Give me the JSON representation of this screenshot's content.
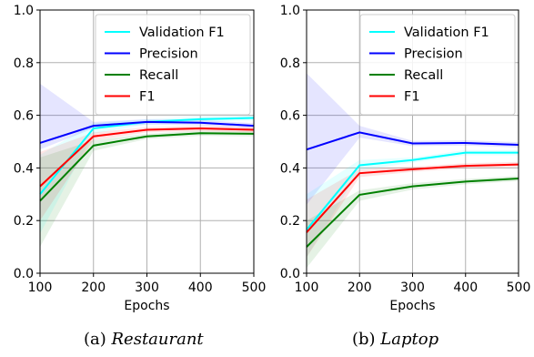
{
  "series_colors": {
    "validation_f1": "#00ffff",
    "precision": "#0000ff",
    "recall": "#008000",
    "f1": "#ff0000"
  },
  "captions": [
    {
      "prefix": "(a) ",
      "name": "Restaurant"
    },
    {
      "prefix": "(b) ",
      "name": "Laptop"
    }
  ],
  "chart_data": [
    {
      "type": "line",
      "xlabel": "Epochs",
      "ylabel": "",
      "x": [
        100,
        200,
        300,
        400,
        500
      ],
      "xlim": [
        100,
        500
      ],
      "ylim": [
        0.0,
        1.0
      ],
      "x_ticks": [
        "100",
        "200",
        "300",
        "400",
        "500"
      ],
      "y_ticks": [
        "0.0",
        "0.2",
        "0.4",
        "0.6",
        "0.8",
        "1.0"
      ],
      "grid": true,
      "legend_position": "top-right",
      "series": [
        {
          "name": "Validation F1",
          "key": "validation_f1",
          "values": [
            0.3,
            0.55,
            0.575,
            0.585,
            0.59
          ],
          "band_low": [
            0.15,
            0.53,
            0.565,
            0.575,
            0.58
          ],
          "band_high": [
            0.45,
            0.57,
            0.585,
            0.595,
            0.6
          ]
        },
        {
          "name": "Precision",
          "key": "precision",
          "values": [
            0.495,
            0.56,
            0.575,
            0.572,
            0.56
          ],
          "band_low": [
            0.47,
            0.55,
            0.565,
            0.562,
            0.55
          ],
          "band_high": [
            0.72,
            0.575,
            0.585,
            0.582,
            0.57
          ]
        },
        {
          "name": "Recall",
          "key": "recall",
          "values": [
            0.275,
            0.485,
            0.52,
            0.532,
            0.53
          ],
          "band_low": [
            0.1,
            0.465,
            0.51,
            0.522,
            0.52
          ],
          "band_high": [
            0.44,
            0.505,
            0.53,
            0.542,
            0.54
          ]
        },
        {
          "name": "F1",
          "key": "f1",
          "values": [
            0.33,
            0.52,
            0.545,
            0.55,
            0.545
          ],
          "band_low": [
            0.2,
            0.505,
            0.535,
            0.54,
            0.535
          ],
          "band_high": [
            0.46,
            0.535,
            0.555,
            0.56,
            0.555
          ]
        }
      ]
    },
    {
      "type": "line",
      "xlabel": "Epochs",
      "ylabel": "",
      "x": [
        100,
        200,
        300,
        400,
        500
      ],
      "xlim": [
        100,
        500
      ],
      "ylim": [
        0.0,
        1.0
      ],
      "x_ticks": [
        "100",
        "200",
        "300",
        "400",
        "500"
      ],
      "y_ticks": [
        "0.0",
        "0.2",
        "0.4",
        "0.6",
        "0.8",
        "1.0"
      ],
      "grid": true,
      "legend_position": "top-right",
      "series": [
        {
          "name": "Validation F1",
          "key": "validation_f1",
          "values": [
            0.165,
            0.41,
            0.43,
            0.458,
            0.458
          ],
          "band_low": [
            0.06,
            0.39,
            0.42,
            0.448,
            0.448
          ],
          "band_high": [
            0.3,
            0.43,
            0.44,
            0.468,
            0.468
          ]
        },
        {
          "name": "Precision",
          "key": "precision",
          "values": [
            0.47,
            0.535,
            0.493,
            0.495,
            0.488
          ],
          "band_low": [
            0.26,
            0.515,
            0.483,
            0.485,
            0.478
          ],
          "band_high": [
            0.76,
            0.56,
            0.503,
            0.505,
            0.498
          ]
        },
        {
          "name": "Recall",
          "key": "recall",
          "values": [
            0.1,
            0.298,
            0.33,
            0.348,
            0.36
          ],
          "band_low": [
            0.02,
            0.275,
            0.318,
            0.338,
            0.35
          ],
          "band_high": [
            0.2,
            0.315,
            0.342,
            0.358,
            0.37
          ]
        },
        {
          "name": "F1",
          "key": "f1",
          "values": [
            0.155,
            0.38,
            0.395,
            0.408,
            0.413
          ],
          "band_low": [
            0.06,
            0.365,
            0.385,
            0.398,
            0.403
          ],
          "band_high": [
            0.28,
            0.395,
            0.405,
            0.418,
            0.423
          ]
        }
      ]
    }
  ]
}
